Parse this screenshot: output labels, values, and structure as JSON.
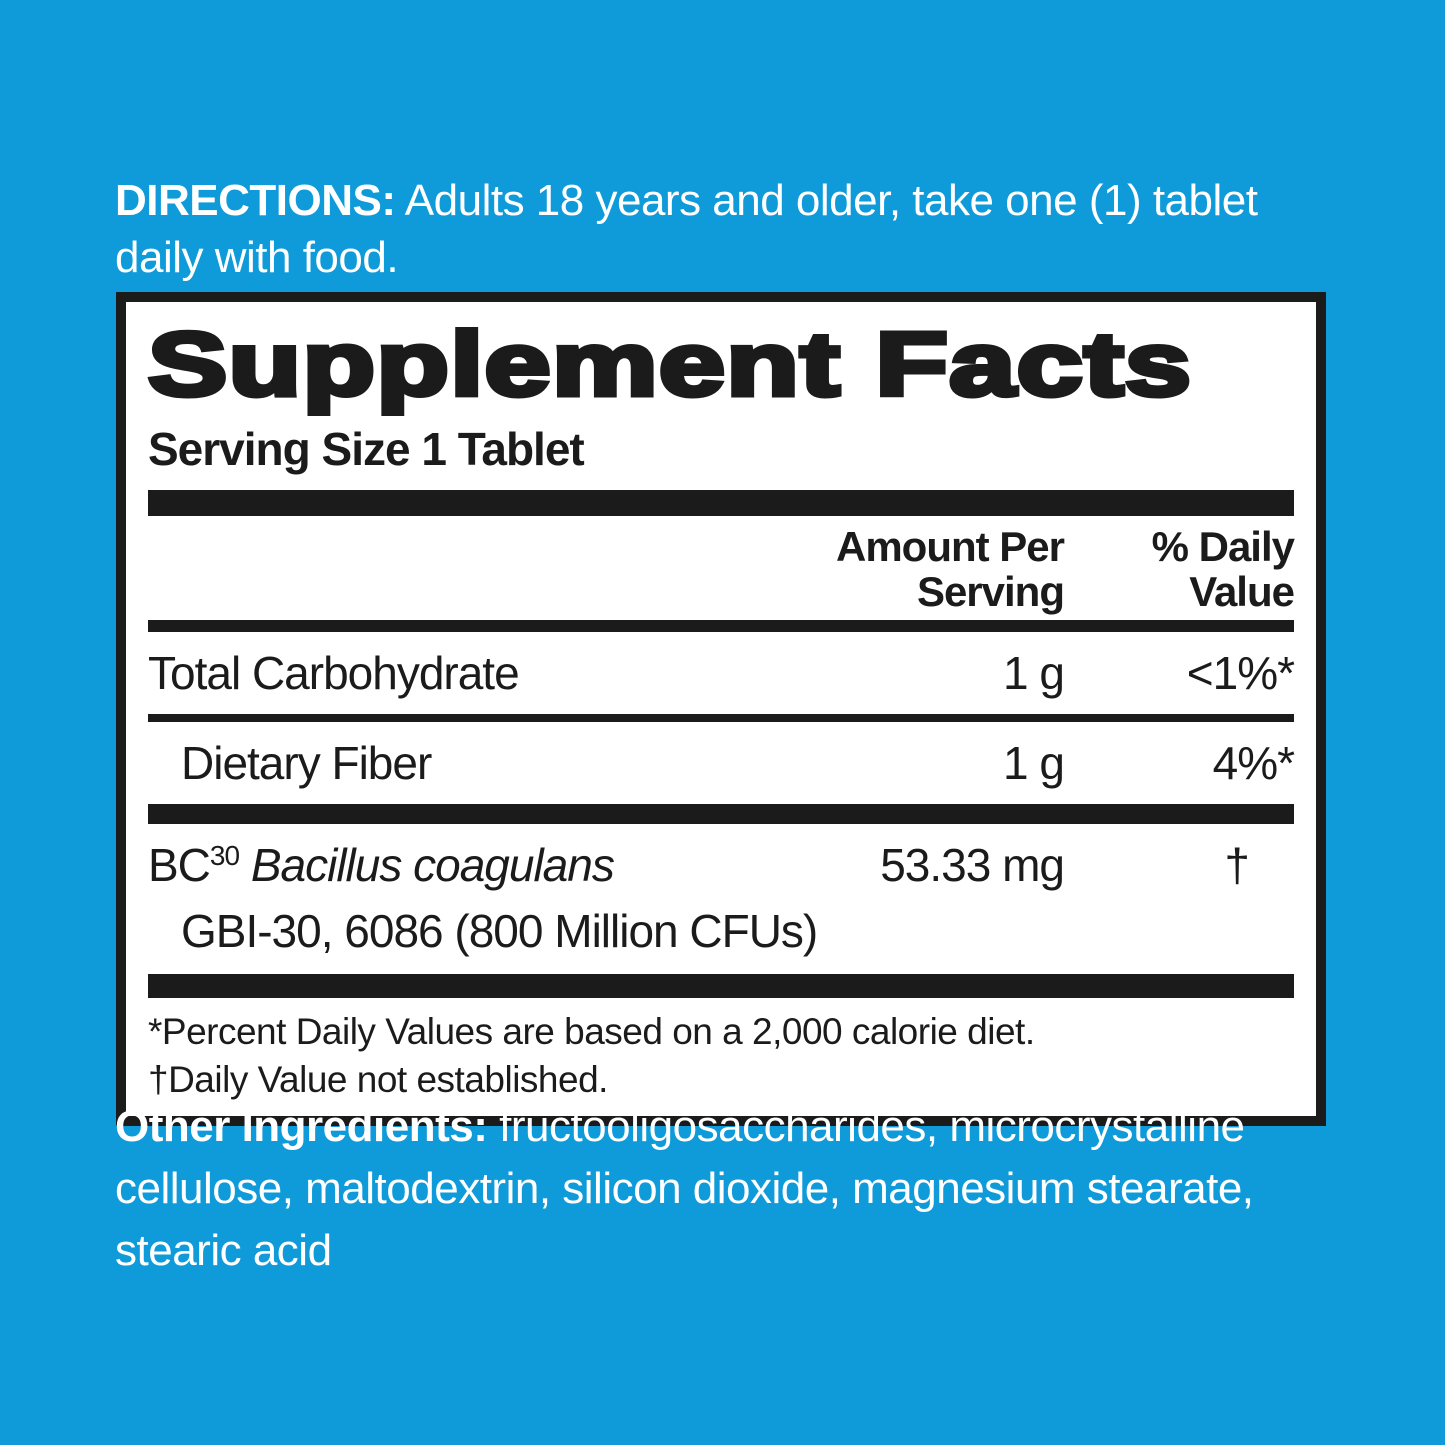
{
  "colors": {
    "background": "#0F9BDA",
    "panel_background": "#FFFFFF",
    "ink": "#1B1B1B",
    "text_on_blue": "#FFFFFF"
  },
  "directions": {
    "label": "DIRECTIONS:",
    "line1_rest": "Adults 18 years and older, take one (1) tablet",
    "line2": "daily with food."
  },
  "supplement_facts": {
    "title": "Supplement Facts",
    "serving_size": "Serving Size 1 Tablet",
    "header": {
      "amount_line1": "Amount Per",
      "amount_line2": "Serving",
      "dv_line1": "% Daily",
      "dv_line2": "Value"
    },
    "rows": [
      {
        "name": "Total Carbohydrate",
        "amount": "1 g",
        "daily_value": "<1%*"
      },
      {
        "name": "Dietary Fiber",
        "amount": "1 g",
        "daily_value": "4%*"
      }
    ],
    "probiotic_row": {
      "name_prefix": "BC",
      "name_superscript": "30",
      "name_italic": "Bacillus coagulans",
      "name_line2": "GBI-30, 6086 (800 Million CFUs)",
      "amount": "53.33 mg",
      "daily_value": "†"
    },
    "footnotes": [
      "*Percent Daily Values are based on a 2,000 calorie diet.",
      "†Daily Value not established."
    ]
  },
  "other_ingredients": {
    "label": "Other Ingredients:",
    "line1_rest": "fructooligosaccharides, microcrystalline",
    "line2": "cellulose, maltodextrin, silicon dioxide, magnesium stearate,",
    "line3": "stearic acid"
  }
}
